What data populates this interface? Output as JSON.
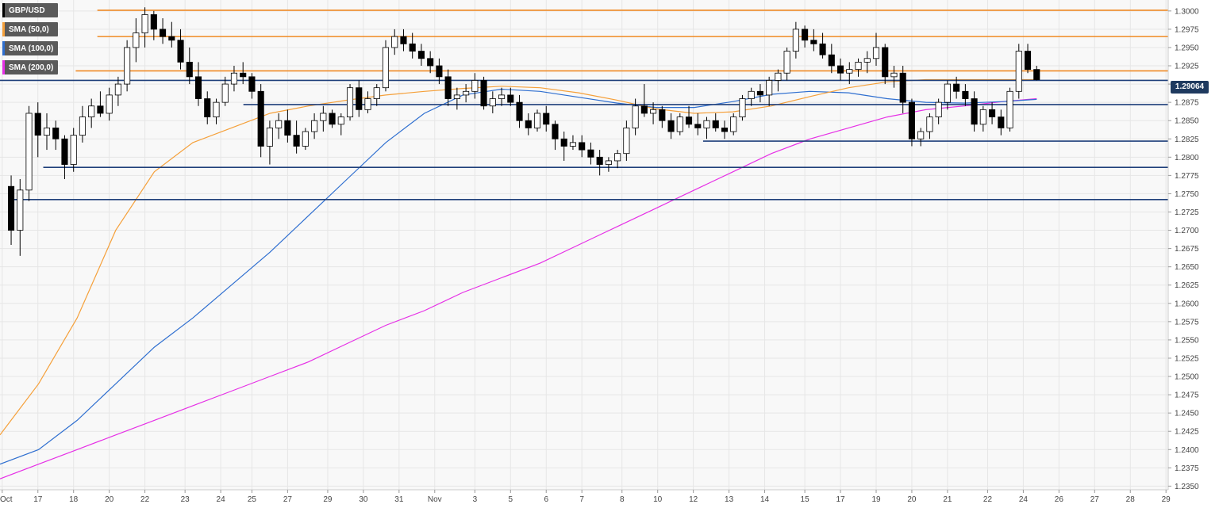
{
  "colors": {
    "background": "#f8f8f8",
    "candle_up": "#ffffff",
    "candle_down": "#000000",
    "resistance": "#f08a24",
    "support": "#1f3f7a",
    "sma50": "#f5a03a",
    "sma100": "#2f6fd0",
    "sma200": "#e630e6",
    "price_tag": "#1f3a5f"
  },
  "legend": [
    {
      "label": "GBP/USD",
      "color": "#000000"
    },
    {
      "label": "SMA (50,0)",
      "color": "#f5a03a"
    },
    {
      "label": "SMA (100,0)",
      "color": "#2f6fd0"
    },
    {
      "label": "SMA (200,0)",
      "color": "#e630e6"
    }
  ],
  "price_tag": "1.29064",
  "chart_data": {
    "type": "candlestick",
    "title": "",
    "ylim": [
      1.2345,
      1.3015
    ],
    "y_ticks": [
      "1.3000",
      "1.2975",
      "1.2950",
      "1.2925",
      "1.2900",
      "1.2875",
      "1.2850",
      "1.2825",
      "1.2800",
      "1.2775",
      "1.2750",
      "1.2725",
      "1.2700",
      "1.2675",
      "1.2650",
      "1.2625",
      "1.2600",
      "1.2575",
      "1.2550",
      "1.2525",
      "1.2500",
      "1.2475",
      "1.2450",
      "1.2425",
      "1.2400",
      "1.2375",
      "1.2350"
    ],
    "x_ticks": [
      "Oct",
      "17",
      "18",
      "20",
      "22",
      "23",
      "24",
      "25",
      "27",
      "29",
      "30",
      "31",
      "Nov",
      "3",
      "5",
      "6",
      "7",
      "8",
      "10",
      "12",
      "13",
      "14",
      "15",
      "17",
      "19",
      "20",
      "21",
      "22",
      "24",
      "26",
      "27",
      "28",
      "29"
    ],
    "x_tick_index": [
      0,
      8,
      16,
      24,
      32,
      41,
      49,
      56,
      64,
      73,
      81,
      89,
      97,
      106,
      114,
      122,
      130,
      139,
      147,
      155,
      163,
      171,
      180,
      188,
      196,
      204,
      212,
      221,
      229,
      237,
      245,
      253,
      261
    ],
    "grid": true,
    "candles": [
      {
        "o": 1.276,
        "h": 1.2775,
        "l": 1.268,
        "c": 1.27
      },
      {
        "o": 1.27,
        "h": 1.277,
        "l": 1.2665,
        "c": 1.2755
      },
      {
        "o": 1.2755,
        "h": 1.287,
        "l": 1.274,
        "c": 1.286
      },
      {
        "o": 1.286,
        "h": 1.2875,
        "l": 1.28,
        "c": 1.283
      },
      {
        "o": 1.283,
        "h": 1.286,
        "l": 1.281,
        "c": 1.284
      },
      {
        "o": 1.284,
        "h": 1.285,
        "l": 1.281,
        "c": 1.2825
      },
      {
        "o": 1.2825,
        "h": 1.283,
        "l": 1.277,
        "c": 1.279
      },
      {
        "o": 1.279,
        "h": 1.284,
        "l": 1.278,
        "c": 1.283
      },
      {
        "o": 1.283,
        "h": 1.287,
        "l": 1.282,
        "c": 1.2855
      },
      {
        "o": 1.2855,
        "h": 1.288,
        "l": 1.284,
        "c": 1.287
      },
      {
        "o": 1.287,
        "h": 1.289,
        "l": 1.2855,
        "c": 1.286
      },
      {
        "o": 1.286,
        "h": 1.2895,
        "l": 1.285,
        "c": 1.2885
      },
      {
        "o": 1.2885,
        "h": 1.291,
        "l": 1.287,
        "c": 1.29
      },
      {
        "o": 1.29,
        "h": 1.296,
        "l": 1.289,
        "c": 1.295
      },
      {
        "o": 1.295,
        "h": 1.299,
        "l": 1.293,
        "c": 1.297
      },
      {
        "o": 1.297,
        "h": 1.3005,
        "l": 1.295,
        "c": 1.2995
      },
      {
        "o": 1.2995,
        "h": 1.3,
        "l": 1.296,
        "c": 1.2975
      },
      {
        "o": 1.2975,
        "h": 1.299,
        "l": 1.2955,
        "c": 1.2965
      },
      {
        "o": 1.2965,
        "h": 1.2985,
        "l": 1.295,
        "c": 1.296
      },
      {
        "o": 1.296,
        "h": 1.2975,
        "l": 1.292,
        "c": 1.293
      },
      {
        "o": 1.293,
        "h": 1.295,
        "l": 1.29,
        "c": 1.291
      },
      {
        "o": 1.291,
        "h": 1.293,
        "l": 1.287,
        "c": 1.288
      },
      {
        "o": 1.288,
        "h": 1.289,
        "l": 1.2845,
        "c": 1.2855
      },
      {
        "o": 1.2855,
        "h": 1.288,
        "l": 1.2845,
        "c": 1.2875
      },
      {
        "o": 1.2875,
        "h": 1.291,
        "l": 1.287,
        "c": 1.29
      },
      {
        "o": 1.29,
        "h": 1.2925,
        "l": 1.289,
        "c": 1.2915
      },
      {
        "o": 1.2915,
        "h": 1.293,
        "l": 1.29,
        "c": 1.291
      },
      {
        "o": 1.291,
        "h": 1.2915,
        "l": 1.288,
        "c": 1.289
      },
      {
        "o": 1.289,
        "h": 1.29,
        "l": 1.28,
        "c": 1.2815
      },
      {
        "o": 1.2815,
        "h": 1.285,
        "l": 1.279,
        "c": 1.284
      },
      {
        "o": 1.284,
        "h": 1.286,
        "l": 1.2825,
        "c": 1.285
      },
      {
        "o": 1.285,
        "h": 1.2865,
        "l": 1.282,
        "c": 1.283
      },
      {
        "o": 1.283,
        "h": 1.285,
        "l": 1.2805,
        "c": 1.2815
      },
      {
        "o": 1.2815,
        "h": 1.284,
        "l": 1.281,
        "c": 1.2835
      },
      {
        "o": 1.2835,
        "h": 1.286,
        "l": 1.2825,
        "c": 1.285
      },
      {
        "o": 1.285,
        "h": 1.287,
        "l": 1.2835,
        "c": 1.286
      },
      {
        "o": 1.286,
        "h": 1.2865,
        "l": 1.284,
        "c": 1.2845
      },
      {
        "o": 1.2845,
        "h": 1.286,
        "l": 1.283,
        "c": 1.2855
      },
      {
        "o": 1.2855,
        "h": 1.29,
        "l": 1.285,
        "c": 1.2895
      },
      {
        "o": 1.2895,
        "h": 1.2905,
        "l": 1.2855,
        "c": 1.2865
      },
      {
        "o": 1.2865,
        "h": 1.289,
        "l": 1.286,
        "c": 1.288
      },
      {
        "o": 1.288,
        "h": 1.29,
        "l": 1.287,
        "c": 1.2895
      },
      {
        "o": 1.2895,
        "h": 1.296,
        "l": 1.289,
        "c": 1.295
      },
      {
        "o": 1.295,
        "h": 1.2975,
        "l": 1.294,
        "c": 1.2965
      },
      {
        "o": 1.2965,
        "h": 1.2975,
        "l": 1.2945,
        "c": 1.2955
      },
      {
        "o": 1.2955,
        "h": 1.297,
        "l": 1.2935,
        "c": 1.2945
      },
      {
        "o": 1.2945,
        "h": 1.2955,
        "l": 1.2925,
        "c": 1.2935
      },
      {
        "o": 1.2935,
        "h": 1.2945,
        "l": 1.2915,
        "c": 1.2925
      },
      {
        "o": 1.2925,
        "h": 1.2935,
        "l": 1.29,
        "c": 1.291
      },
      {
        "o": 1.291,
        "h": 1.292,
        "l": 1.287,
        "c": 1.288
      },
      {
        "o": 1.288,
        "h": 1.2895,
        "l": 1.2865,
        "c": 1.2885
      },
      {
        "o": 1.2885,
        "h": 1.29,
        "l": 1.2875,
        "c": 1.289
      },
      {
        "o": 1.289,
        "h": 1.2915,
        "l": 1.288,
        "c": 1.2905
      },
      {
        "o": 1.2905,
        "h": 1.291,
        "l": 1.2865,
        "c": 1.287
      },
      {
        "o": 1.287,
        "h": 1.289,
        "l": 1.286,
        "c": 1.288
      },
      {
        "o": 1.288,
        "h": 1.2895,
        "l": 1.287,
        "c": 1.2885
      },
      {
        "o": 1.2885,
        "h": 1.2895,
        "l": 1.287,
        "c": 1.2875
      },
      {
        "o": 1.2875,
        "h": 1.2885,
        "l": 1.284,
        "c": 1.285
      },
      {
        "o": 1.285,
        "h": 1.286,
        "l": 1.283,
        "c": 1.284
      },
      {
        "o": 1.284,
        "h": 1.2865,
        "l": 1.2835,
        "c": 1.286
      },
      {
        "o": 1.286,
        "h": 1.287,
        "l": 1.2835,
        "c": 1.2845
      },
      {
        "o": 1.2845,
        "h": 1.285,
        "l": 1.281,
        "c": 1.2825
      },
      {
        "o": 1.2825,
        "h": 1.2835,
        "l": 1.2795,
        "c": 1.2815
      },
      {
        "o": 1.2815,
        "h": 1.283,
        "l": 1.281,
        "c": 1.282
      },
      {
        "o": 1.282,
        "h": 1.283,
        "l": 1.28,
        "c": 1.281
      },
      {
        "o": 1.281,
        "h": 1.282,
        "l": 1.279,
        "c": 1.28
      },
      {
        "o": 1.28,
        "h": 1.281,
        "l": 1.2775,
        "c": 1.279
      },
      {
        "o": 1.279,
        "h": 1.28,
        "l": 1.278,
        "c": 1.2795
      },
      {
        "o": 1.2795,
        "h": 1.281,
        "l": 1.2785,
        "c": 1.2805
      },
      {
        "o": 1.2805,
        "h": 1.285,
        "l": 1.2795,
        "c": 1.284
      },
      {
        "o": 1.284,
        "h": 1.288,
        "l": 1.283,
        "c": 1.287
      },
      {
        "o": 1.287,
        "h": 1.29,
        "l": 1.2855,
        "c": 1.286
      },
      {
        "o": 1.286,
        "h": 1.2875,
        "l": 1.2845,
        "c": 1.2865
      },
      {
        "o": 1.2865,
        "h": 1.287,
        "l": 1.284,
        "c": 1.285
      },
      {
        "o": 1.285,
        "h": 1.286,
        "l": 1.2825,
        "c": 1.2835
      },
      {
        "o": 1.2835,
        "h": 1.286,
        "l": 1.283,
        "c": 1.2855
      },
      {
        "o": 1.2855,
        "h": 1.287,
        "l": 1.284,
        "c": 1.2845
      },
      {
        "o": 1.2845,
        "h": 1.286,
        "l": 1.283,
        "c": 1.284
      },
      {
        "o": 1.284,
        "h": 1.2855,
        "l": 1.2825,
        "c": 1.285
      },
      {
        "o": 1.285,
        "h": 1.286,
        "l": 1.2835,
        "c": 1.284
      },
      {
        "o": 1.284,
        "h": 1.285,
        "l": 1.2825,
        "c": 1.2835
      },
      {
        "o": 1.2835,
        "h": 1.286,
        "l": 1.283,
        "c": 1.2855
      },
      {
        "o": 1.2855,
        "h": 1.2885,
        "l": 1.285,
        "c": 1.288
      },
      {
        "o": 1.288,
        "h": 1.2895,
        "l": 1.287,
        "c": 1.289
      },
      {
        "o": 1.289,
        "h": 1.29,
        "l": 1.2875,
        "c": 1.2885
      },
      {
        "o": 1.2885,
        "h": 1.291,
        "l": 1.287,
        "c": 1.2905
      },
      {
        "o": 1.2905,
        "h": 1.292,
        "l": 1.289,
        "c": 1.2915
      },
      {
        "o": 1.2915,
        "h": 1.295,
        "l": 1.2905,
        "c": 1.2945
      },
      {
        "o": 1.2945,
        "h": 1.2985,
        "l": 1.2935,
        "c": 1.2975
      },
      {
        "o": 1.2975,
        "h": 1.298,
        "l": 1.295,
        "c": 1.296
      },
      {
        "o": 1.296,
        "h": 1.2975,
        "l": 1.2945,
        "c": 1.2955
      },
      {
        "o": 1.2955,
        "h": 1.297,
        "l": 1.2935,
        "c": 1.294
      },
      {
        "o": 1.294,
        "h": 1.2955,
        "l": 1.2915,
        "c": 1.2925
      },
      {
        "o": 1.2925,
        "h": 1.2935,
        "l": 1.2905,
        "c": 1.2915
      },
      {
        "o": 1.2915,
        "h": 1.293,
        "l": 1.29,
        "c": 1.292
      },
      {
        "o": 1.292,
        "h": 1.2935,
        "l": 1.291,
        "c": 1.293
      },
      {
        "o": 1.293,
        "h": 1.2945,
        "l": 1.2915,
        "c": 1.2935
      },
      {
        "o": 1.2935,
        "h": 1.297,
        "l": 1.2925,
        "c": 1.295
      },
      {
        "o": 1.295,
        "h": 1.2955,
        "l": 1.29,
        "c": 1.291
      },
      {
        "o": 1.291,
        "h": 1.2925,
        "l": 1.2895,
        "c": 1.2915
      },
      {
        "o": 1.2915,
        "h": 1.2925,
        "l": 1.286,
        "c": 1.2875
      },
      {
        "o": 1.2875,
        "h": 1.288,
        "l": 1.2815,
        "c": 1.2825
      },
      {
        "o": 1.2825,
        "h": 1.284,
        "l": 1.2815,
        "c": 1.2835
      },
      {
        "o": 1.2835,
        "h": 1.286,
        "l": 1.2825,
        "c": 1.2855
      },
      {
        "o": 1.2855,
        "h": 1.288,
        "l": 1.2845,
        "c": 1.2875
      },
      {
        "o": 1.2875,
        "h": 1.2905,
        "l": 1.2865,
        "c": 1.29
      },
      {
        "o": 1.29,
        "h": 1.291,
        "l": 1.288,
        "c": 1.289
      },
      {
        "o": 1.289,
        "h": 1.29,
        "l": 1.287,
        "c": 1.288
      },
      {
        "o": 1.288,
        "h": 1.289,
        "l": 1.2835,
        "c": 1.2845
      },
      {
        "o": 1.2845,
        "h": 1.287,
        "l": 1.2835,
        "c": 1.2865
      },
      {
        "o": 1.2865,
        "h": 1.2875,
        "l": 1.2845,
        "c": 1.2855
      },
      {
        "o": 1.2855,
        "h": 1.2865,
        "l": 1.283,
        "c": 1.284
      },
      {
        "o": 1.284,
        "h": 1.2895,
        "l": 1.2835,
        "c": 1.289
      },
      {
        "o": 1.289,
        "h": 1.2955,
        "l": 1.288,
        "c": 1.2945
      },
      {
        "o": 1.2945,
        "h": 1.2955,
        "l": 1.2915,
        "c": 1.292
      },
      {
        "o": 1.292,
        "h": 1.2925,
        "l": 1.2905,
        "c": 1.2906
      }
    ],
    "sma50": [
      [
        0,
        1.242
      ],
      [
        8,
        1.249
      ],
      [
        16,
        1.258
      ],
      [
        24,
        1.27
      ],
      [
        32,
        1.278
      ],
      [
        40,
        1.282
      ],
      [
        48,
        1.284
      ],
      [
        56,
        1.286
      ],
      [
        64,
        1.287
      ],
      [
        72,
        1.2878
      ],
      [
        80,
        1.2885
      ],
      [
        88,
        1.289
      ],
      [
        96,
        1.2894
      ],
      [
        104,
        1.2897
      ],
      [
        112,
        1.2895
      ],
      [
        120,
        1.2888
      ],
      [
        128,
        1.2878
      ],
      [
        136,
        1.2866
      ],
      [
        144,
        1.286
      ],
      [
        152,
        1.2862
      ],
      [
        160,
        1.287
      ],
      [
        168,
        1.2883
      ],
      [
        176,
        1.2895
      ],
      [
        184,
        1.2903
      ],
      [
        192,
        1.2906
      ],
      [
        200,
        1.2906
      ],
      [
        208,
        1.2906
      ],
      [
        215,
        1.2906
      ]
    ],
    "sma100": [
      [
        0,
        1.238
      ],
      [
        8,
        1.24
      ],
      [
        16,
        1.244
      ],
      [
        24,
        1.249
      ],
      [
        32,
        1.254
      ],
      [
        40,
        1.258
      ],
      [
        48,
        1.2625
      ],
      [
        56,
        1.267
      ],
      [
        64,
        1.272
      ],
      [
        72,
        1.277
      ],
      [
        80,
        1.282
      ],
      [
        88,
        1.286
      ],
      [
        96,
        1.2885
      ],
      [
        104,
        1.2893
      ],
      [
        112,
        1.289
      ],
      [
        120,
        1.2882
      ],
      [
        128,
        1.2874
      ],
      [
        136,
        1.2868
      ],
      [
        144,
        1.2868
      ],
      [
        152,
        1.2876
      ],
      [
        160,
        1.2886
      ],
      [
        168,
        1.289
      ],
      [
        176,
        1.2888
      ],
      [
        184,
        1.288
      ],
      [
        192,
        1.2875
      ],
      [
        200,
        1.2874
      ],
      [
        208,
        1.2876
      ],
      [
        215,
        1.2879
      ]
    ],
    "sma200": [
      [
        0,
        1.236
      ],
      [
        8,
        1.238
      ],
      [
        16,
        1.24
      ],
      [
        24,
        1.242
      ],
      [
        32,
        1.244
      ],
      [
        40,
        1.246
      ],
      [
        48,
        1.248
      ],
      [
        56,
        1.25
      ],
      [
        64,
        1.252
      ],
      [
        72,
        1.2545
      ],
      [
        80,
        1.257
      ],
      [
        88,
        1.259
      ],
      [
        96,
        1.2615
      ],
      [
        104,
        1.2635
      ],
      [
        112,
        1.2655
      ],
      [
        120,
        1.268
      ],
      [
        128,
        1.2705
      ],
      [
        136,
        1.273
      ],
      [
        144,
        1.2755
      ],
      [
        152,
        1.278
      ],
      [
        160,
        1.2805
      ],
      [
        168,
        1.2825
      ],
      [
        176,
        1.284
      ],
      [
        184,
        1.2855
      ],
      [
        192,
        1.2865
      ],
      [
        200,
        1.287
      ],
      [
        208,
        1.2876
      ],
      [
        215,
        1.288
      ]
    ],
    "resistance_lines": [
      {
        "y": 1.3001,
        "from": 18,
        "to": 216
      },
      {
        "y": 1.2965,
        "from": 18,
        "to": 216
      },
      {
        "y": 1.2918,
        "from": 14,
        "to": 216
      }
    ],
    "support_lines": [
      {
        "y": 1.2905,
        "from": 0,
        "to": 216
      },
      {
        "y": 1.2872,
        "from": 45,
        "to": 216
      },
      {
        "y": 1.2822,
        "from": 130,
        "to": 216
      },
      {
        "y": 1.2786,
        "from": 8,
        "to": 216
      },
      {
        "y": 1.2742,
        "from": 2,
        "to": 216
      }
    ],
    "last_price": 1.29064
  }
}
